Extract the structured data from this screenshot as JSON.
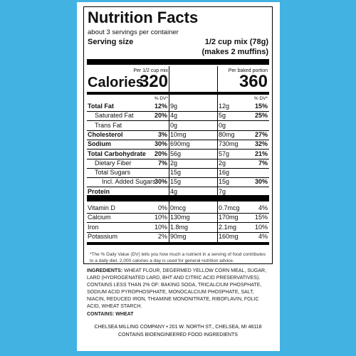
{
  "title": "Nutrition Facts",
  "servings": "about 3 servings per container",
  "serving_size_label": "Serving size",
  "serving_size": [
    "1/2 cup mix (78g)",
    "(makes 2 muffins)"
  ],
  "calories_label": "Calories",
  "columns": [
    {
      "header": "Per 1/2 cup mix",
      "calories": "320"
    },
    {
      "header": "Per baked portion",
      "calories": "360"
    }
  ],
  "dv_header": "% DV*",
  "nutrients": [
    {
      "name": "Total Fat",
      "bold": true,
      "indent": 0,
      "a": "9g",
      "a_dv": "12%",
      "b": "12g",
      "b_dv": "15%"
    },
    {
      "name": "Saturated Fat",
      "bold": false,
      "indent": 1,
      "a": "4g",
      "a_dv": "20%",
      "b": "5g",
      "b_dv": "25%"
    },
    {
      "name": "Trans Fat",
      "bold": false,
      "indent": 1,
      "a": "0g",
      "b": "0g"
    },
    {
      "name": "Cholesterol",
      "bold": true,
      "indent": 0,
      "a": "10mg",
      "a_dv": "3%",
      "b": "80mg",
      "b_dv": "27%"
    },
    {
      "name": "Sodium",
      "bold": true,
      "indent": 0,
      "a": "690mg",
      "a_dv": "30%",
      "b": "730mg",
      "b_dv": "32%"
    },
    {
      "name": "Total Carbohydrate",
      "bold": true,
      "indent": 0,
      "a": "56g",
      "a_dv": "20%",
      "b": "57g",
      "b_dv": "21%"
    },
    {
      "name": "Dietary Fiber",
      "bold": false,
      "indent": 1,
      "a": "2g",
      "a_dv": "7%",
      "b": "2g",
      "b_dv": "7%"
    },
    {
      "name": "Total Sugars",
      "bold": false,
      "indent": 1,
      "a": "15g",
      "b": "16g"
    },
    {
      "name": "Incl. Added Sugars",
      "bold": false,
      "indent": 2,
      "a": "15g",
      "a_dv": "30%",
      "b": "15g",
      "b_dv": "30%"
    },
    {
      "name": "Protein",
      "bold": true,
      "indent": 0,
      "a": "4g",
      "b": "7g"
    }
  ],
  "vitamins": [
    {
      "name": "Vitamin D",
      "a": "0mcg",
      "a_dv": "0%",
      "b": "0.7mcg",
      "b_dv": "4%"
    },
    {
      "name": "Calcium",
      "a": "130mg",
      "a_dv": "10%",
      "b": "170mg",
      "b_dv": "15%"
    },
    {
      "name": "Iron",
      "a": "1.8mg",
      "a_dv": "10%",
      "b": "2.1mg",
      "b_dv": "10%"
    },
    {
      "name": "Potassium",
      "a": "90mg",
      "a_dv": "2%",
      "b": "160mg",
      "b_dv": "4%"
    }
  ],
  "footnote": "*The % Daily Value (DV) tells you how much a nutrient in a serving of food contributes to a daily diet. 2,000 calories a day is used for general nutrition advice.",
  "ingredients_label": "INGREDIENTS:",
  "ingredients": "WHEAT FLOUR, DEGERMED YELLOW CORN MEAL, SUGAR, LARD (HYDROGENATED LARD, BHT AND CITRIC ACID PRESERVATIVES). CONTAINS LESS THAN 2% OF: BAKING SODA, TRICALCIUM PHOSPHATE, SODIUM ACID PYROPHOSPHATE, MONOCALCIUM PHOSPHATE, SALT, NIACIN, REDUCED IRON, THIAMINE MONONITRATE, RIBOFLAVIN, FOLIC ACID, WHEAT STARCH.",
  "contains": "CONTAINS: WHEAT",
  "company": "CHELSEA MILLING COMPANY  •  201 W. NORTH ST., CHELSEA, MI  48118",
  "bioengineered": "CONTAINS BIOENGINEERED FOOD INGREDIENTS"
}
